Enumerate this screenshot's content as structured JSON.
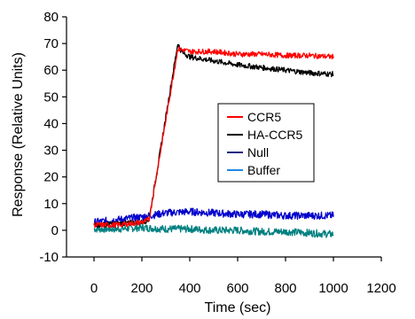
{
  "chart_data": {
    "type": "line",
    "xlabel": "Time (sec)",
    "ylabel": "Response (Relative Units)",
    "xlim": [
      0,
      1200
    ],
    "ylim": [
      -10,
      80
    ],
    "xticks": [
      "0",
      "200",
      "400",
      "600",
      "800",
      "1000",
      "1200"
    ],
    "yticks": [
      "-10",
      "0",
      "10",
      "20",
      "30",
      "40",
      "50",
      "60",
      "70",
      "80"
    ],
    "grid": false,
    "legend_position": "center-right",
    "colors": {
      "CCR5": "#ff0000",
      "HA-CCR5": "#000000",
      "Null": "#0000cc",
      "Buffer": "#008080"
    },
    "legend_colors": {
      "CCR5": "#ff0000",
      "HA-CCR5": "#000000",
      "Null": "#1a237e",
      "Buffer": "#1e88e5"
    },
    "series": [
      {
        "name": "CCR5",
        "x": [
          0,
          100,
          200,
          230,
          350,
          400,
          500,
          600,
          700,
          800,
          900,
          1000
        ],
        "y": [
          2,
          2,
          3,
          4,
          68,
          67,
          67,
          66,
          66,
          65.5,
          65.5,
          65
        ]
      },
      {
        "name": "HA-CCR5",
        "x": [
          0,
          100,
          200,
          230,
          350,
          365,
          400,
          500,
          600,
          700,
          800,
          900,
          1000
        ],
        "y": [
          2,
          2.5,
          3,
          4,
          70,
          67,
          65,
          63.5,
          62,
          61,
          60,
          59,
          58.5
        ]
      },
      {
        "name": "Null",
        "x": [
          0,
          100,
          200,
          300,
          400,
          500,
          600,
          700,
          800,
          900,
          1000
        ],
        "y": [
          3,
          4,
          5,
          6.5,
          7,
          6.5,
          6,
          6,
          5.5,
          5.5,
          5.5
        ]
      },
      {
        "name": "Buffer",
        "x": [
          0,
          100,
          200,
          300,
          400,
          500,
          600,
          700,
          800,
          900,
          1000
        ],
        "y": [
          0.5,
          0.5,
          1,
          0.5,
          0.5,
          0,
          0,
          -0.5,
          -0.5,
          -1,
          -1.5
        ]
      }
    ]
  }
}
